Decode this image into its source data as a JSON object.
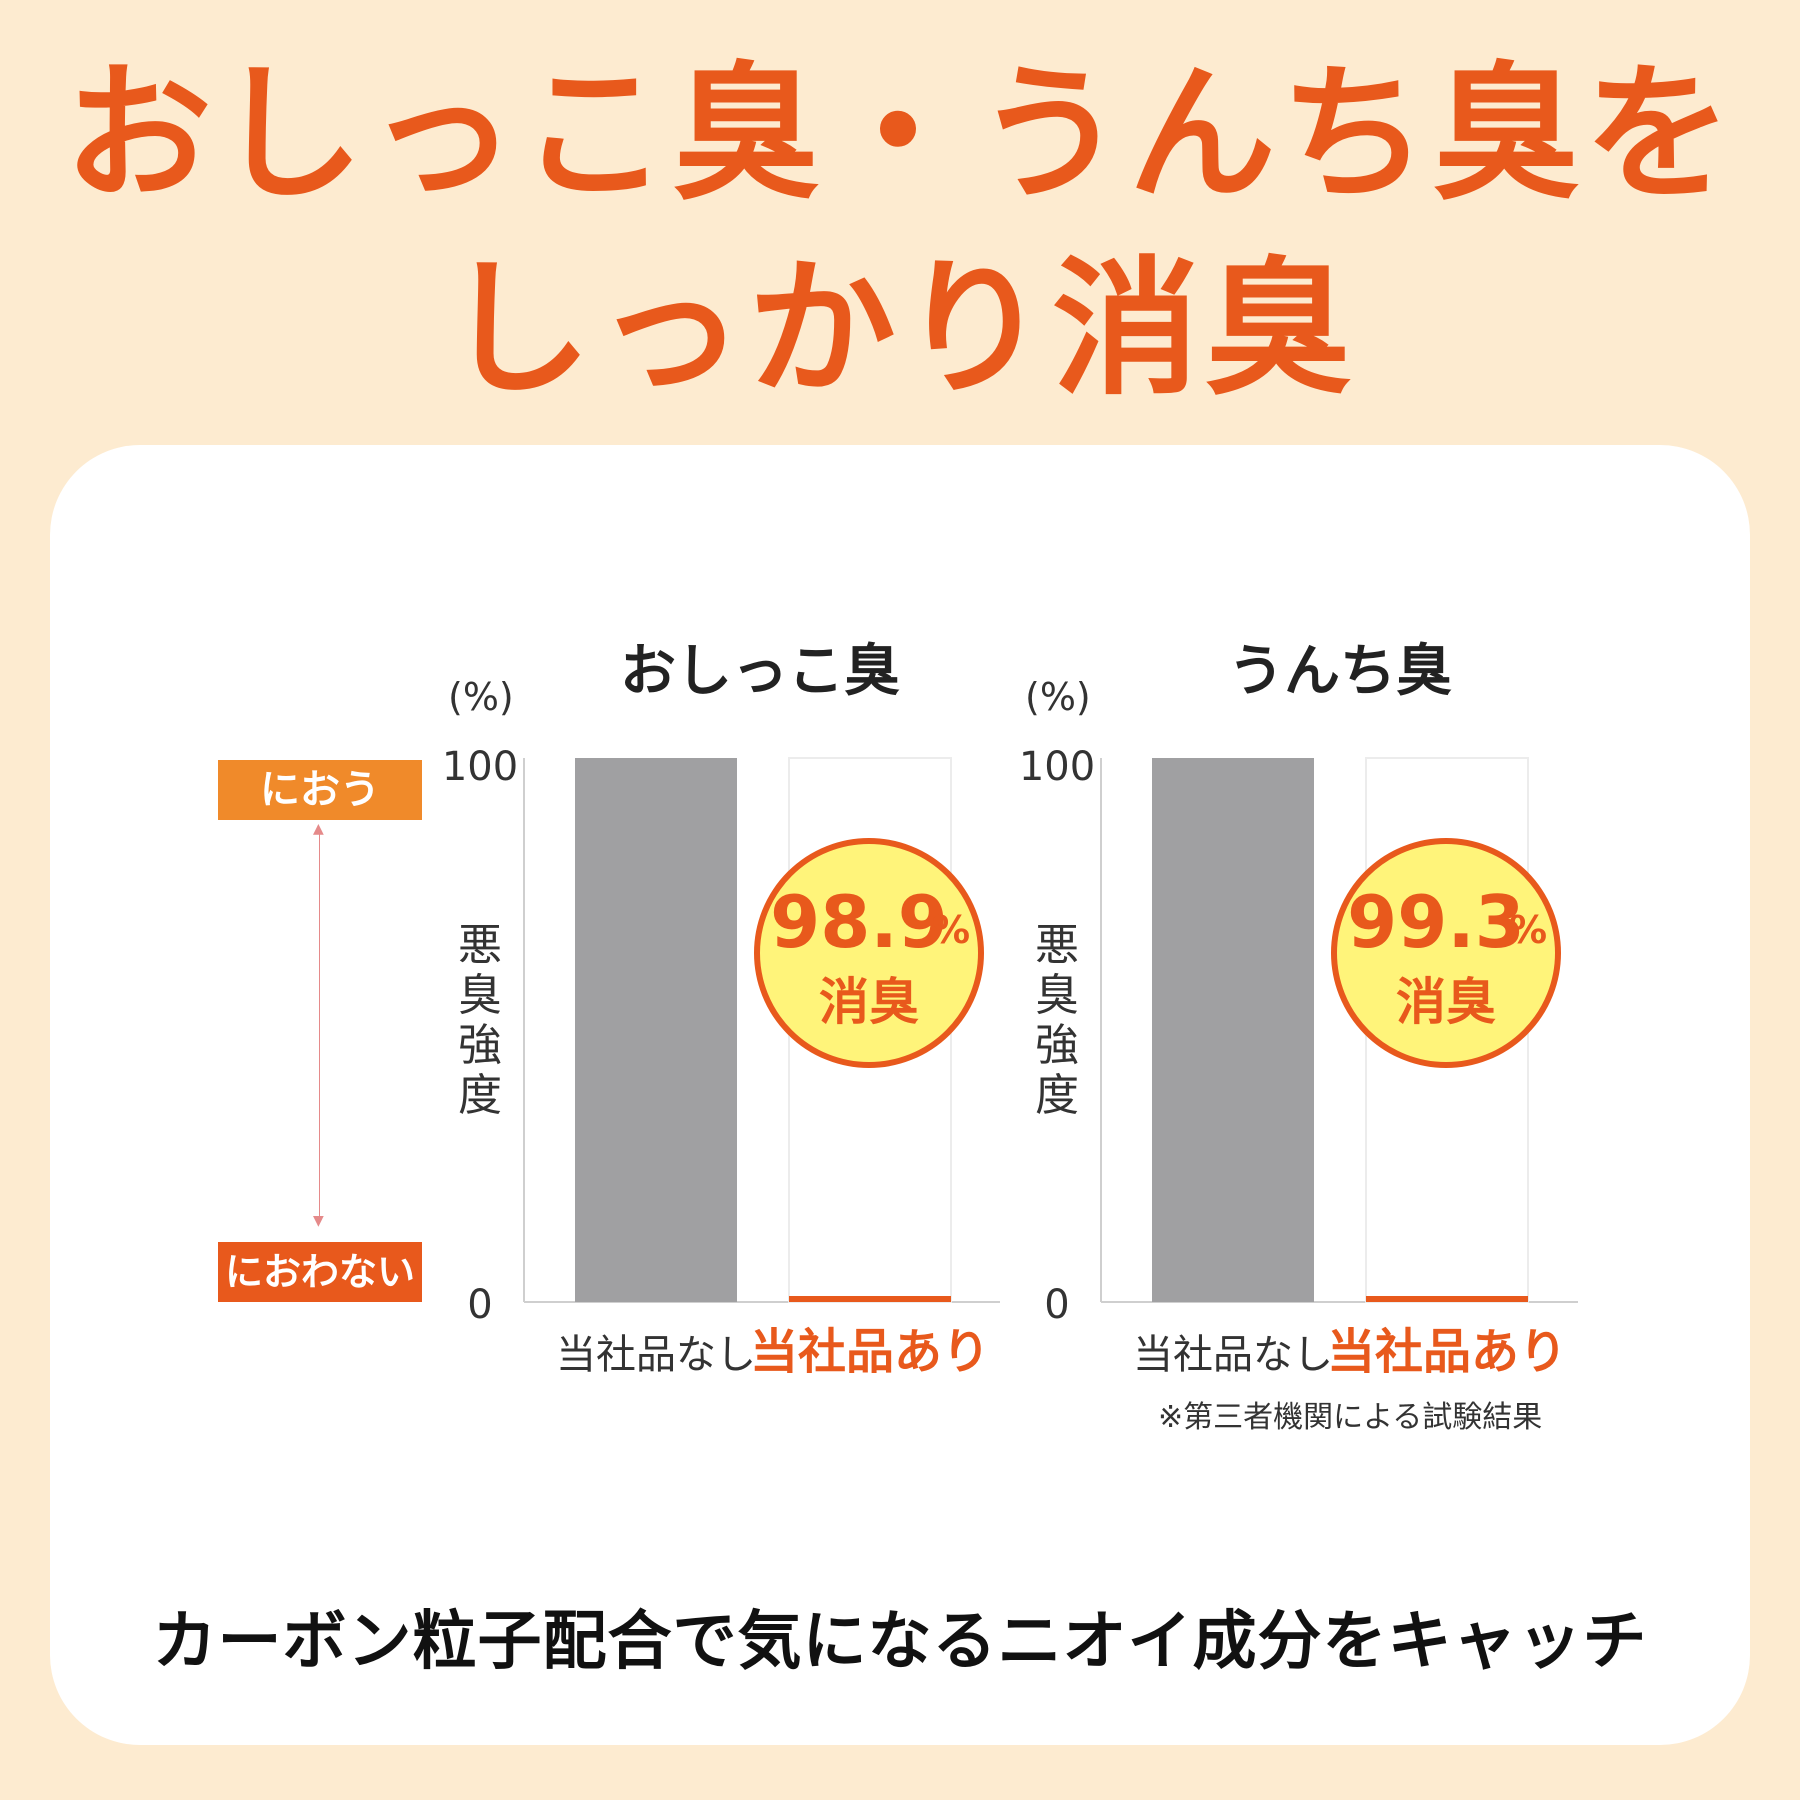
{
  "headline": {
    "line1": "おしっこ臭・うんち臭を",
    "line2": "しっかり消臭"
  },
  "scale": {
    "top_label": "におう",
    "bottom_label": "におわない"
  },
  "chart_data": [
    {
      "type": "bar",
      "title": "おしっこ臭",
      "unit_label": "(%)",
      "ylabel": "悪臭強度",
      "ylim": [
        0,
        100
      ],
      "yticks": [
        "100",
        "0"
      ],
      "categories": [
        "当社品なし",
        "当社品あり"
      ],
      "values": [
        100,
        1.1
      ],
      "badge": {
        "value": "98.9",
        "unit": "%",
        "label": "消臭"
      }
    },
    {
      "type": "bar",
      "title": "うんち臭",
      "unit_label": "(%)",
      "ylabel": "悪臭強度",
      "ylim": [
        0,
        100
      ],
      "yticks": [
        "100",
        "0"
      ],
      "categories": [
        "当社品なし",
        "当社品あり"
      ],
      "values": [
        100,
        0.7
      ],
      "badge": {
        "value": "99.3",
        "unit": "%",
        "label": "消臭"
      }
    }
  ],
  "footnote": "※第三者機関による試験結果",
  "caption": "カーボン粒子配合で気になるニオイ成分をキャッチ",
  "colors": {
    "accent": "#e8591c",
    "tag_top": "#f08a2a",
    "bar_without": "#a0a0a2",
    "bar_with": "#e8591c",
    "badge_fill": "#fff47a"
  }
}
